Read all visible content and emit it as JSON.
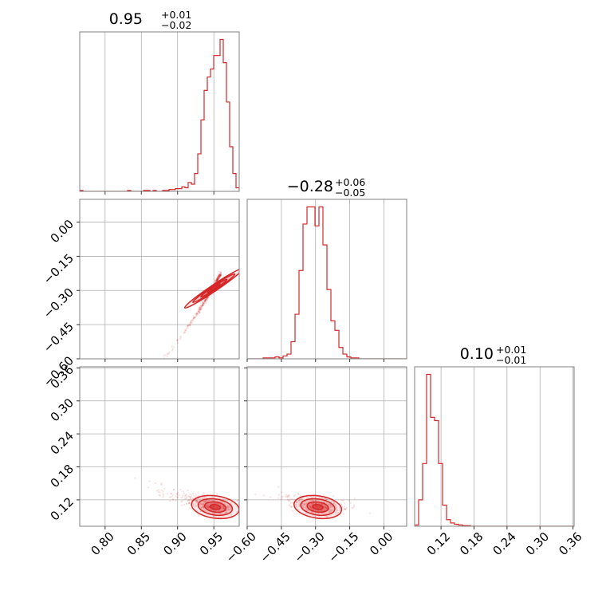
{
  "chart_data": {
    "type": "corner",
    "color": "#d62728",
    "parameters": [
      {
        "median": "0.95",
        "plus": "+0.01",
        "minus": "−0.02"
      },
      {
        "median": "−0.28",
        "plus": "+0.06",
        "minus": "−0.05"
      },
      {
        "median": "0.10",
        "plus": "+0.01",
        "minus": "−0.01"
      }
    ],
    "ranges": [
      [
        0.765,
        0.985
      ],
      [
        -0.6,
        0.1
      ],
      [
        0.072,
        0.362
      ]
    ],
    "ticks": [
      {
        "values": [
          0.8,
          0.85,
          0.9,
          0.95
        ],
        "labels": [
          "0.80",
          "0.85",
          "0.90",
          "0.95"
        ]
      },
      {
        "values": [
          -0.6,
          -0.45,
          -0.3,
          -0.15,
          0.0
        ],
        "labels": [
          "−0.60",
          "−0.45",
          "−0.30",
          "−0.15",
          "0.00"
        ]
      },
      {
        "values": [
          0.12,
          0.18,
          0.24,
          0.3,
          0.36
        ],
        "labels": [
          "0.12",
          "0.18",
          "0.24",
          "0.30",
          "0.36"
        ]
      }
    ],
    "histograms": [
      {
        "edges_range": [
          0.765,
          0.985
        ],
        "counts": [
          1,
          0,
          0,
          0,
          0,
          0,
          0,
          0,
          0,
          0,
          0,
          0,
          0,
          0,
          0,
          1,
          0,
          0,
          0,
          0,
          1,
          1,
          0,
          1,
          0,
          0,
          1,
          1,
          2,
          2,
          3,
          3,
          5,
          4,
          10,
          8,
          20,
          42,
          80,
          113,
          128,
          137,
          152,
          152,
          170,
          144,
          100,
          50,
          20,
          4
        ]
      },
      {
        "edges_range": [
          -0.6,
          0.1
        ],
        "counts": [
          0,
          0,
          0,
          0,
          1,
          1,
          1,
          2,
          1,
          3,
          5,
          18,
          47,
          93,
          142,
          160,
          160,
          140,
          160,
          120,
          73,
          40,
          30,
          12,
          5,
          2,
          1,
          1,
          0,
          0,
          0,
          0,
          0,
          0,
          0,
          0,
          0,
          0,
          0,
          0
        ]
      },
      {
        "edges_range": [
          0.072,
          0.362
        ],
        "counts": [
          2,
          40,
          95,
          230,
          165,
          160,
          95,
          32,
          10,
          5,
          3,
          2,
          1,
          1,
          0,
          0,
          0,
          0,
          0,
          0,
          0,
          0,
          0,
          0,
          0,
          0,
          0,
          0,
          0,
          0,
          0,
          0,
          0,
          0,
          0,
          0,
          0,
          0,
          0,
          0
        ]
      }
    ]
  }
}
